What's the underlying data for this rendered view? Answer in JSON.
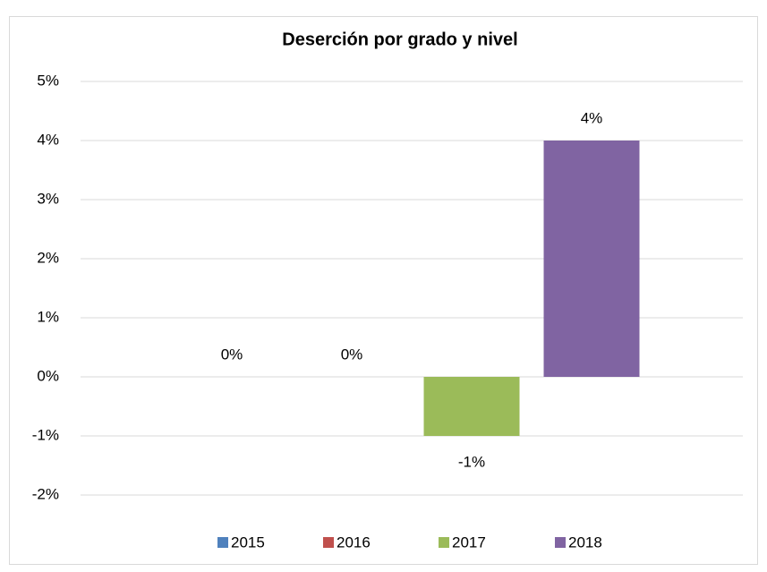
{
  "chart_data": {
    "type": "bar",
    "title": "Deserción por grado y nivel",
    "series": [
      {
        "name": "2015",
        "color": "#4f81bd",
        "values": [
          0
        ],
        "value_labels": [
          "0%"
        ]
      },
      {
        "name": "2016",
        "color": "#c0504d",
        "values": [
          0
        ],
        "value_labels": [
          "0%"
        ]
      },
      {
        "name": "2017",
        "color": "#9bbb59",
        "values": [
          -1
        ],
        "value_labels": [
          "-1%"
        ]
      },
      {
        "name": "2018",
        "color": "#8064a2",
        "values": [
          4
        ],
        "value_labels": [
          "4%"
        ]
      }
    ],
    "ylim": [
      -2,
      5
    ],
    "yticks": [
      {
        "value": -2,
        "label": "-2%"
      },
      {
        "value": -1,
        "label": "-1%"
      },
      {
        "value": 0,
        "label": "0%"
      },
      {
        "value": 1,
        "label": "1%"
      },
      {
        "value": 2,
        "label": "2%"
      },
      {
        "value": 3,
        "label": "3%"
      },
      {
        "value": 4,
        "label": "4%"
      },
      {
        "value": 5,
        "label": "5%"
      }
    ],
    "grid": true,
    "legend": "bottom"
  }
}
